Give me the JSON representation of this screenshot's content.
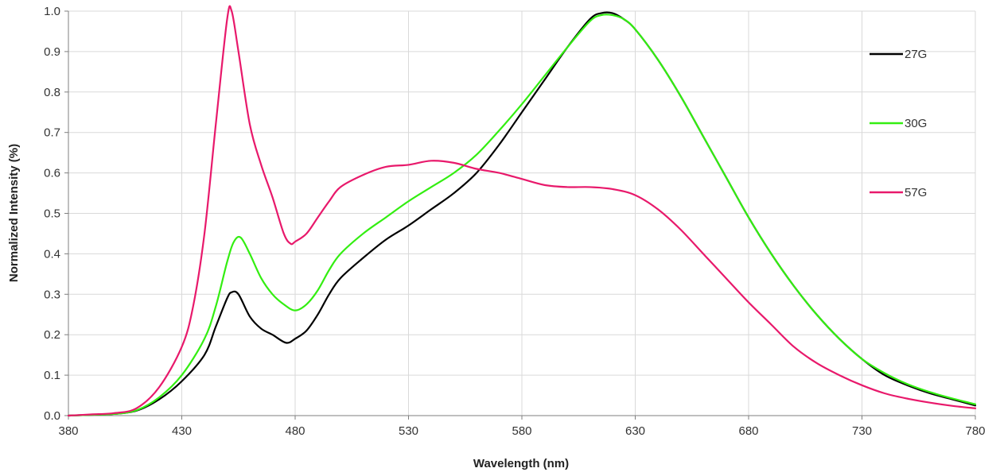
{
  "chart_data": {
    "type": "line",
    "title": "",
    "xlabel": "Wavelength (nm)",
    "ylabel": "Normalized Intensity (%)",
    "xlim": [
      380,
      780
    ],
    "ylim": [
      0,
      1.0
    ],
    "grid": true,
    "legend_position": "right",
    "x_ticks": [
      380,
      430,
      480,
      530,
      580,
      630,
      680,
      730,
      780
    ],
    "x_tick_labels": [
      "380",
      "430",
      "480",
      "530",
      "580",
      "630",
      "680",
      "730",
      "780"
    ],
    "y_ticks": [
      0,
      0.1,
      0.2,
      0.3,
      0.4,
      0.5,
      0.6,
      0.7,
      0.8,
      0.9,
      1.0
    ],
    "y_tick_labels": [
      "0.0",
      "0.1",
      "0.2",
      "0.3",
      "0.4",
      "0.5",
      "0.6",
      "0.7",
      "0.8",
      "0.9",
      "1.0"
    ],
    "series": [
      {
        "name": "27G",
        "color": "#000000",
        "points": [
          [
            380,
            0
          ],
          [
            390,
            0.002
          ],
          [
            400,
            0.004
          ],
          [
            410,
            0.012
          ],
          [
            420,
            0.04
          ],
          [
            430,
            0.085
          ],
          [
            440,
            0.15
          ],
          [
            445,
            0.22
          ],
          [
            450,
            0.29
          ],
          [
            452,
            0.305
          ],
          [
            455,
            0.3
          ],
          [
            460,
            0.245
          ],
          [
            465,
            0.215
          ],
          [
            470,
            0.2
          ],
          [
            476,
            0.18
          ],
          [
            480,
            0.19
          ],
          [
            485,
            0.21
          ],
          [
            490,
            0.25
          ],
          [
            495,
            0.3
          ],
          [
            500,
            0.34
          ],
          [
            510,
            0.39
          ],
          [
            520,
            0.435
          ],
          [
            530,
            0.47
          ],
          [
            540,
            0.51
          ],
          [
            550,
            0.55
          ],
          [
            560,
            0.6
          ],
          [
            570,
            0.67
          ],
          [
            580,
            0.75
          ],
          [
            590,
            0.83
          ],
          [
            600,
            0.91
          ],
          [
            610,
            0.98
          ],
          [
            615,
            0.995
          ],
          [
            620,
            0.995
          ],
          [
            625,
            0.98
          ],
          [
            630,
            0.955
          ],
          [
            640,
            0.88
          ],
          [
            650,
            0.79
          ],
          [
            660,
            0.69
          ],
          [
            670,
            0.59
          ],
          [
            680,
            0.49
          ],
          [
            690,
            0.4
          ],
          [
            700,
            0.32
          ],
          [
            710,
            0.25
          ],
          [
            720,
            0.19
          ],
          [
            730,
            0.14
          ],
          [
            740,
            0.1
          ],
          [
            750,
            0.075
          ],
          [
            760,
            0.055
          ],
          [
            770,
            0.04
          ],
          [
            780,
            0.025
          ]
        ]
      },
      {
        "name": "30G",
        "color": "#33ee11",
        "points": [
          [
            380,
            0
          ],
          [
            390,
            0.002
          ],
          [
            400,
            0.004
          ],
          [
            410,
            0.013
          ],
          [
            420,
            0.045
          ],
          [
            430,
            0.1
          ],
          [
            440,
            0.19
          ],
          [
            445,
            0.27
          ],
          [
            450,
            0.38
          ],
          [
            453,
            0.43
          ],
          [
            456,
            0.44
          ],
          [
            460,
            0.4
          ],
          [
            465,
            0.34
          ],
          [
            470,
            0.3
          ],
          [
            475,
            0.275
          ],
          [
            480,
            0.26
          ],
          [
            485,
            0.275
          ],
          [
            490,
            0.31
          ],
          [
            495,
            0.36
          ],
          [
            500,
            0.4
          ],
          [
            510,
            0.45
          ],
          [
            520,
            0.49
          ],
          [
            530,
            0.53
          ],
          [
            540,
            0.565
          ],
          [
            550,
            0.6
          ],
          [
            560,
            0.645
          ],
          [
            570,
            0.705
          ],
          [
            580,
            0.77
          ],
          [
            590,
            0.84
          ],
          [
            600,
            0.91
          ],
          [
            610,
            0.975
          ],
          [
            615,
            0.99
          ],
          [
            620,
            0.99
          ],
          [
            625,
            0.98
          ],
          [
            630,
            0.955
          ],
          [
            640,
            0.88
          ],
          [
            650,
            0.79
          ],
          [
            660,
            0.69
          ],
          [
            670,
            0.59
          ],
          [
            680,
            0.49
          ],
          [
            690,
            0.4
          ],
          [
            700,
            0.32
          ],
          [
            710,
            0.25
          ],
          [
            720,
            0.19
          ],
          [
            730,
            0.14
          ],
          [
            740,
            0.105
          ],
          [
            750,
            0.078
          ],
          [
            760,
            0.058
          ],
          [
            770,
            0.042
          ],
          [
            780,
            0.028
          ]
        ]
      },
      {
        "name": "57G",
        "color": "#e8196b",
        "points": [
          [
            380,
            0
          ],
          [
            390,
            0.003
          ],
          [
            400,
            0.006
          ],
          [
            410,
            0.018
          ],
          [
            420,
            0.07
          ],
          [
            430,
            0.17
          ],
          [
            435,
            0.27
          ],
          [
            440,
            0.45
          ],
          [
            445,
            0.72
          ],
          [
            450,
            0.98
          ],
          [
            452,
            1.0
          ],
          [
            455,
            0.9
          ],
          [
            460,
            0.72
          ],
          [
            465,
            0.62
          ],
          [
            470,
            0.54
          ],
          [
            475,
            0.45
          ],
          [
            478,
            0.425
          ],
          [
            480,
            0.43
          ],
          [
            485,
            0.45
          ],
          [
            490,
            0.49
          ],
          [
            495,
            0.53
          ],
          [
            500,
            0.565
          ],
          [
            510,
            0.595
          ],
          [
            520,
            0.615
          ],
          [
            530,
            0.62
          ],
          [
            540,
            0.63
          ],
          [
            550,
            0.625
          ],
          [
            560,
            0.61
          ],
          [
            570,
            0.6
          ],
          [
            580,
            0.585
          ],
          [
            590,
            0.57
          ],
          [
            600,
            0.565
          ],
          [
            610,
            0.565
          ],
          [
            620,
            0.56
          ],
          [
            630,
            0.545
          ],
          [
            640,
            0.51
          ],
          [
            650,
            0.46
          ],
          [
            660,
            0.4
          ],
          [
            670,
            0.34
          ],
          [
            680,
            0.28
          ],
          [
            690,
            0.225
          ],
          [
            700,
            0.17
          ],
          [
            710,
            0.13
          ],
          [
            720,
            0.1
          ],
          [
            730,
            0.075
          ],
          [
            740,
            0.055
          ],
          [
            750,
            0.042
          ],
          [
            760,
            0.032
          ],
          [
            770,
            0.024
          ],
          [
            780,
            0.018
          ]
        ]
      }
    ]
  }
}
